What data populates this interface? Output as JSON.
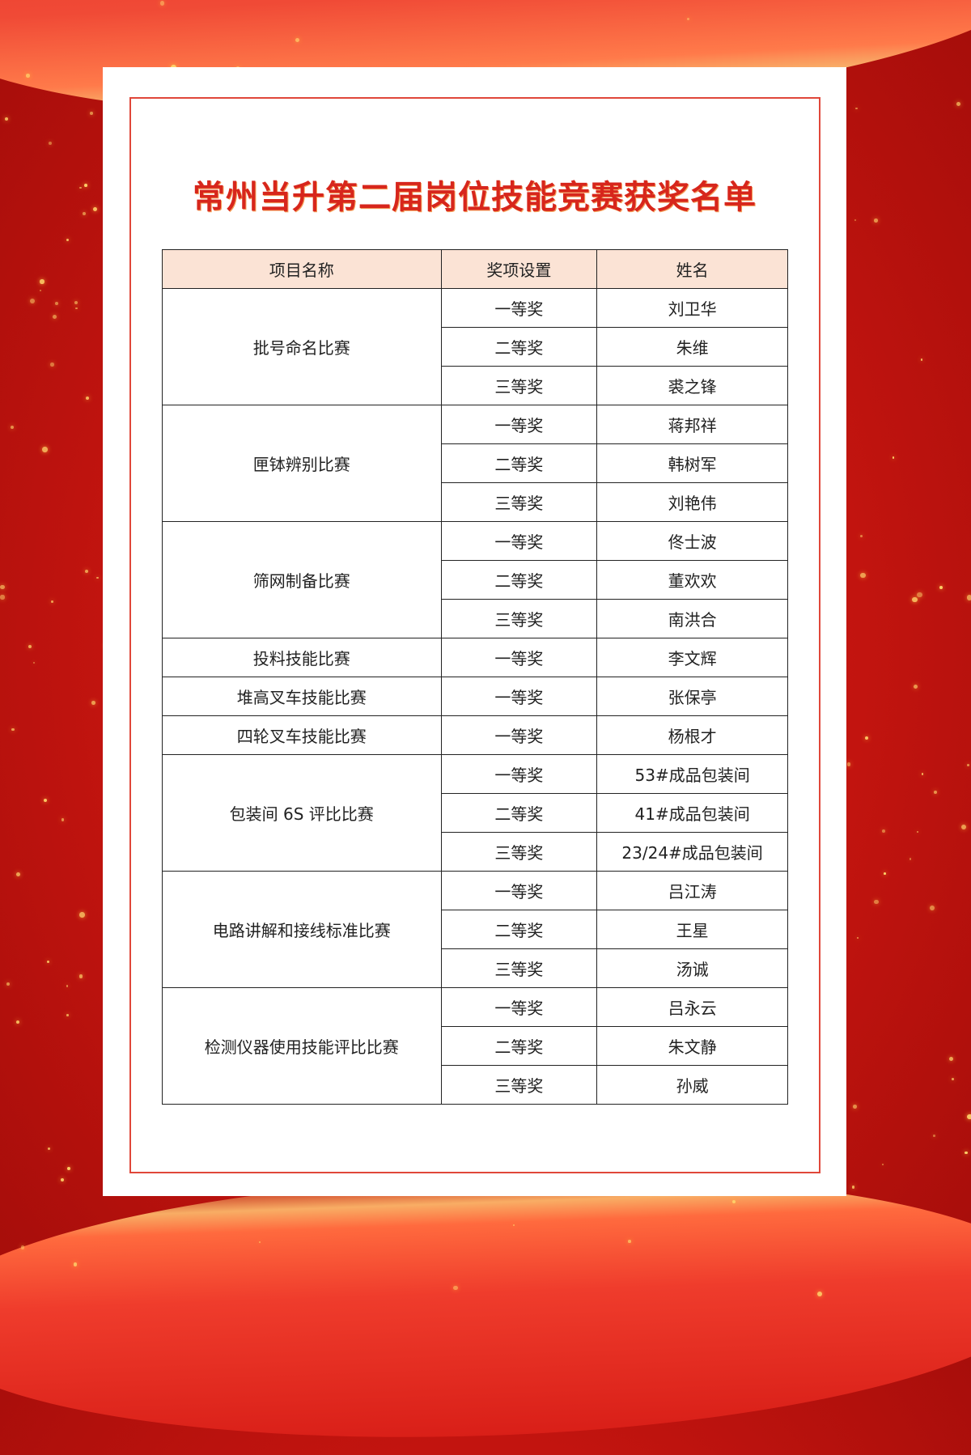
{
  "title": "常州当升第二届岗位技能竞赛获奖名单",
  "colors": {
    "background": "#c2140f",
    "title": "#d7261c",
    "header_bg": "#fbe3d5",
    "frame": "#e0473a"
  },
  "table": {
    "headers": [
      "项目名称",
      "奖项设置",
      "姓名"
    ],
    "groups": [
      {
        "project": "批号命名比赛",
        "awards": [
          [
            "一等奖",
            "刘卫华"
          ],
          [
            "二等奖",
            "朱维"
          ],
          [
            "三等奖",
            "裘之锋"
          ]
        ]
      },
      {
        "project": "匣钵辨别比赛",
        "awards": [
          [
            "一等奖",
            "蒋邦祥"
          ],
          [
            "二等奖",
            "韩树军"
          ],
          [
            "三等奖",
            "刘艳伟"
          ]
        ]
      },
      {
        "project": "筛网制备比赛",
        "awards": [
          [
            "一等奖",
            "佟士波"
          ],
          [
            "二等奖",
            "董欢欢"
          ],
          [
            "三等奖",
            "南洪合"
          ]
        ]
      },
      {
        "project": "投料技能比赛",
        "awards": [
          [
            "一等奖",
            "李文辉"
          ]
        ]
      },
      {
        "project": "堆高叉车技能比赛",
        "awards": [
          [
            "一等奖",
            "张保亭"
          ]
        ]
      },
      {
        "project": "四轮叉车技能比赛",
        "awards": [
          [
            "一等奖",
            "杨根才"
          ]
        ]
      },
      {
        "project": "包装间 6S 评比比赛",
        "awards": [
          [
            "一等奖",
            "53#成品包装间"
          ],
          [
            "二等奖",
            "41#成品包装间"
          ],
          [
            "三等奖",
            "23/24#成品包装间"
          ]
        ]
      },
      {
        "project": "电路讲解和接线标准比赛",
        "awards": [
          [
            "一等奖",
            "吕江涛"
          ],
          [
            "二等奖",
            "王星"
          ],
          [
            "三等奖",
            "汤诚"
          ]
        ]
      },
      {
        "project": "检测仪器使用技能评比比赛",
        "awards": [
          [
            "一等奖",
            "吕永云"
          ],
          [
            "二等奖",
            "朱文静"
          ],
          [
            "三等奖",
            "孙威"
          ]
        ]
      }
    ]
  }
}
